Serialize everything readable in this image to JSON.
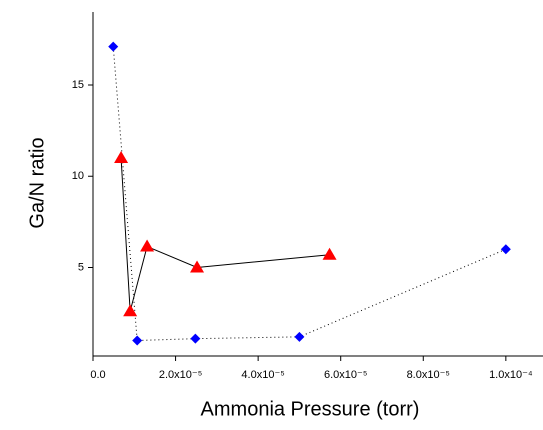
{
  "chart_data": {
    "type": "scatter",
    "x_label": "Ammonia Pressure (torr)",
    "y_label": "Ga/N ratio",
    "series": [
      {
        "color": "#0000ff",
        "marker": "diamond",
        "line": "dotted",
        "x": [
          4.9e-06,
          1.07e-05,
          2.48e-05,
          5e-05,
          0.0001
        ],
        "values": [
          17.1,
          1.0,
          1.1,
          1.2,
          6.0
        ]
      },
      {
        "color": "#ff0000",
        "marker": "triangle",
        "line": "solid",
        "x": [
          6.8e-06,
          9e-06,
          1.31e-05,
          2.52e-05,
          5.73e-05
        ],
        "values": [
          11.0,
          2.6,
          6.15,
          5.0,
          5.7
        ]
      }
    ],
    "xlim": [
      0,
      0.000109
    ],
    "xticks": [
      {
        "value": 0,
        "label": "0.0"
      },
      {
        "value": 2e-05,
        "label": "2.0x10⁻⁵"
      },
      {
        "value": 4e-05,
        "label": "4.0x10⁻⁵"
      },
      {
        "value": 6e-05,
        "label": "6.0x10⁻⁵"
      },
      {
        "value": 8e-05,
        "label": "8.0x10⁻⁵"
      },
      {
        "value": 0.0001,
        "label": "1.0x10⁻⁴"
      }
    ],
    "ylim": [
      0.15,
      19
    ],
    "yticks": [
      5,
      10,
      15
    ]
  }
}
